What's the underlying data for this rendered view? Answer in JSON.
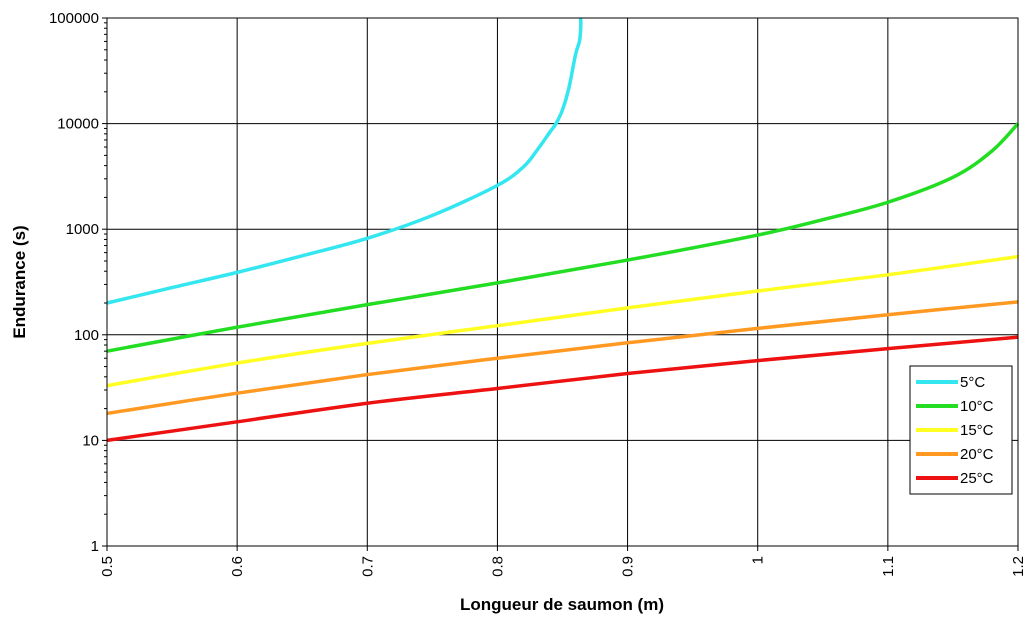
{
  "chart_data": {
    "type": "line",
    "title": "",
    "xlabel": "Longueur de saumon (m)",
    "ylabel": "Endurance (s)",
    "xlim": [
      0.5,
      1.2
    ],
    "ylim": [
      1,
      100000
    ],
    "y_scale": "log",
    "grid": true,
    "legend_position": "bottom-right",
    "x_ticks": [
      "0.5",
      "0.6",
      "0.7",
      "0.8",
      "0.9",
      "1",
      "1.1",
      "1.2"
    ],
    "y_ticks": [
      "1",
      "10",
      "100",
      "1000",
      "10000",
      "100000"
    ],
    "series": [
      {
        "name": "5°C",
        "color": "#33E6F0",
        "x": [
          0.5,
          0.55,
          0.6,
          0.65,
          0.7,
          0.75,
          0.8,
          0.82,
          0.83,
          0.84,
          0.845,
          0.85,
          0.855,
          0.86,
          0.863,
          0.864,
          0.864
        ],
        "y": [
          200,
          280,
          390,
          560,
          820,
          1350,
          2600,
          3900,
          5500,
          8200,
          10000,
          13500,
          22000,
          45000,
          60000,
          80000,
          100000
        ]
      },
      {
        "name": "10°C",
        "color": "#22DD22",
        "x": [
          0.5,
          0.6,
          0.7,
          0.8,
          0.9,
          1.0,
          1.05,
          1.1,
          1.15,
          1.18,
          1.2
        ],
        "y": [
          70,
          118,
          193,
          310,
          510,
          880,
          1230,
          1800,
          3100,
          5500,
          10000
        ]
      },
      {
        "name": "15°C",
        "color": "#FFFF22",
        "x": [
          0.5,
          0.6,
          0.7,
          0.8,
          0.9,
          1.0,
          1.1,
          1.2
        ],
        "y": [
          33,
          54,
          83,
          122,
          180,
          260,
          370,
          550
        ]
      },
      {
        "name": "20°C",
        "color": "#FF9922",
        "x": [
          0.5,
          0.6,
          0.7,
          0.8,
          0.9,
          1.0,
          1.1,
          1.2
        ],
        "y": [
          18,
          28,
          42,
          60,
          84,
          115,
          155,
          205
        ]
      },
      {
        "name": "25°C",
        "color": "#EE1111",
        "x": [
          0.5,
          0.6,
          0.7,
          0.8,
          0.9,
          1.0,
          1.1,
          1.2
        ],
        "y": [
          10,
          15,
          22.5,
          31,
          43,
          57,
          74,
          95
        ]
      }
    ]
  }
}
